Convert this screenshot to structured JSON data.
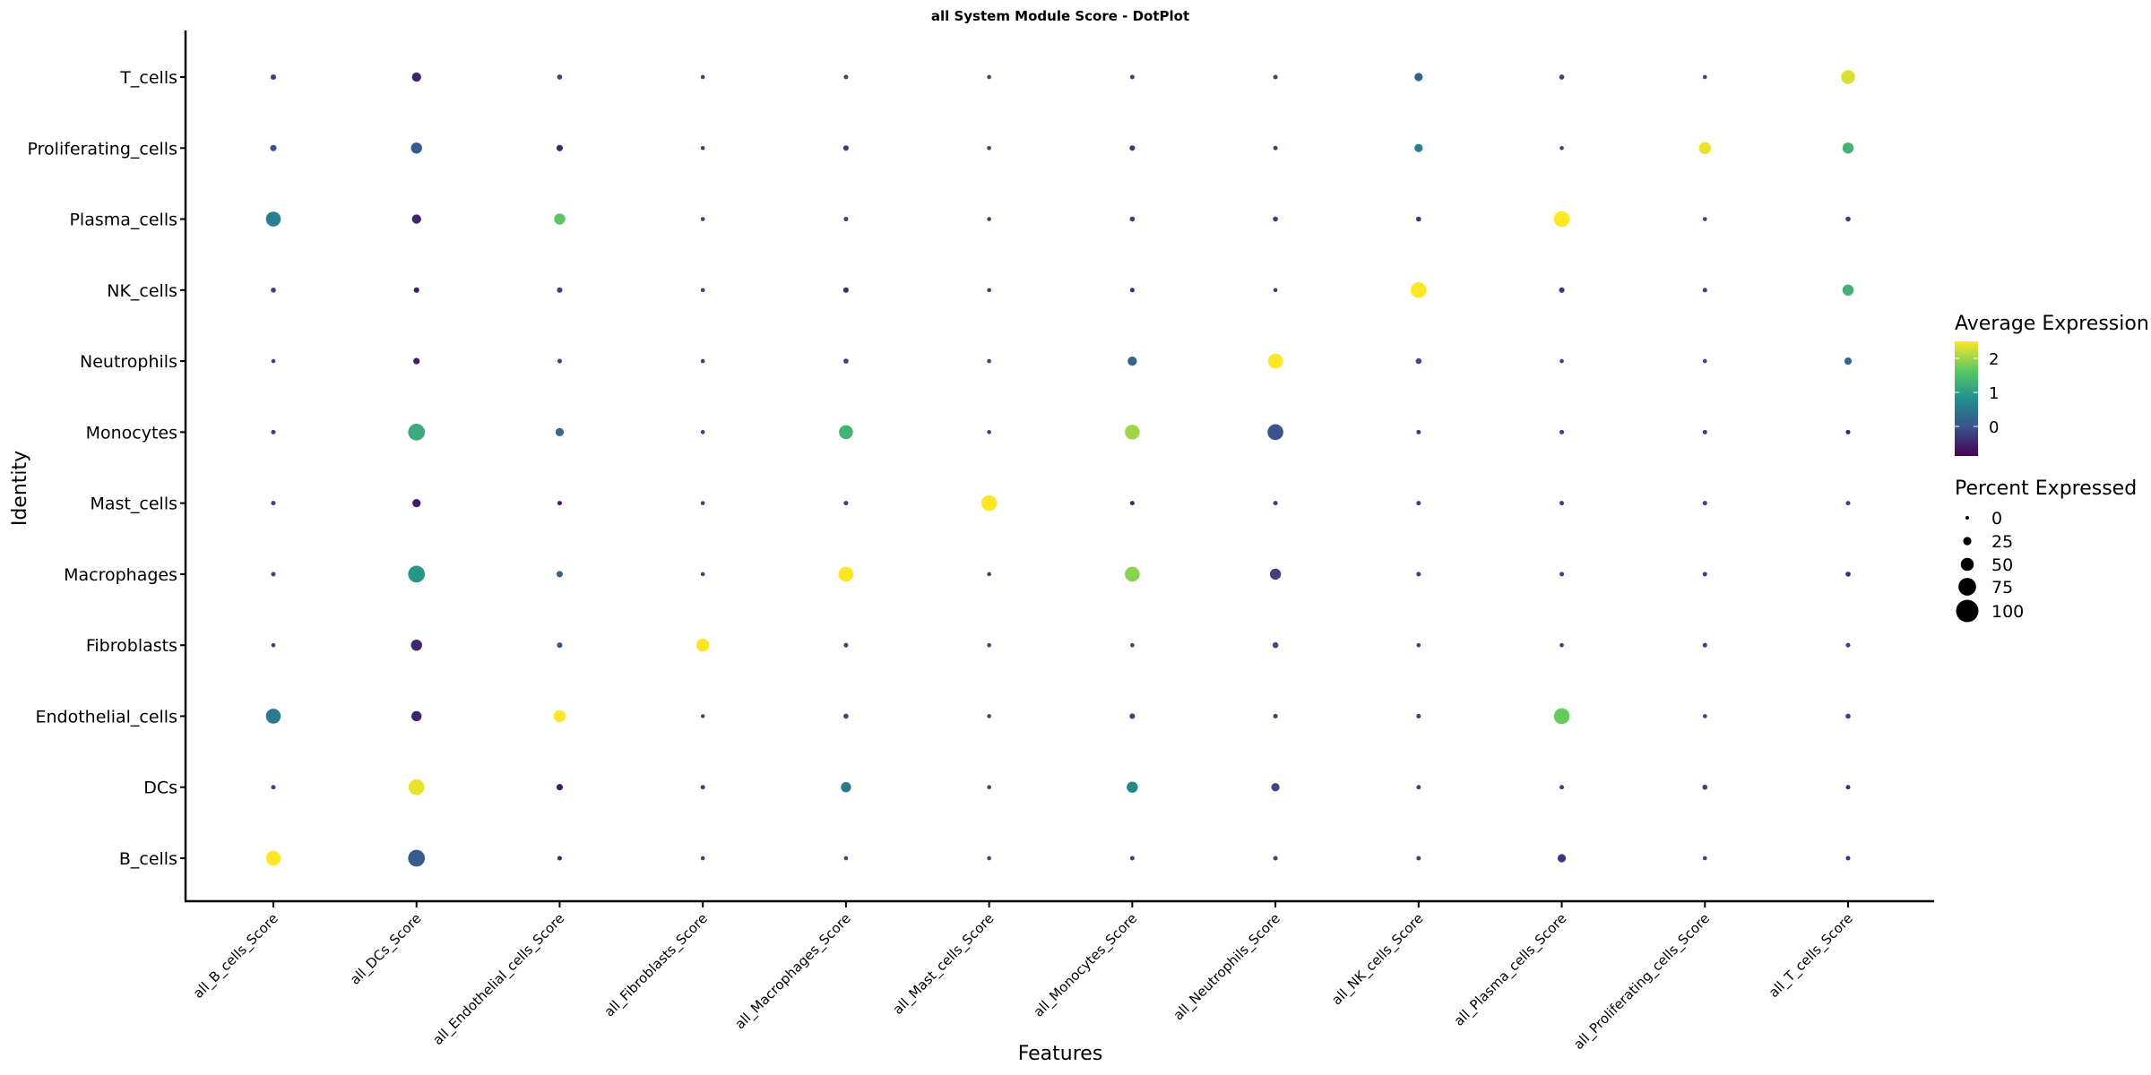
{
  "chart_data": {
    "type": "dotplot",
    "title": "all System Module Score - DotPlot",
    "xlabel": "Features",
    "ylabel": "Identity",
    "features": [
      "all_B_cells_Score",
      "all_DCs_Score",
      "all_Endothelial_cells_Score",
      "all_Fibroblasts_Score",
      "all_Macrophages_Score",
      "all_Mast_cells_Score",
      "all_Monocytes_Score",
      "all_Neutrophils_Score",
      "all_NK_cells_Score",
      "all_Plasma_cells_Score",
      "all_Proliferating_cells_Score",
      "all_T_cells_Score"
    ],
    "identities_top_to_bottom": [
      "T_cells",
      "Proliferating_cells",
      "Plasma_cells",
      "NK_cells",
      "Neutrophils",
      "Monocytes",
      "Mast_cells",
      "Macrophages",
      "Fibroblasts",
      "Endothelial_cells",
      "DCs",
      "B_cells"
    ],
    "avg_expression": [
      [
        -0.2,
        -0.5,
        -0.2,
        -0.2,
        -0.2,
        -0.2,
        -0.2,
        -0.2,
        0.2,
        -0.2,
        -0.2,
        2.3
      ],
      [
        0.0,
        0.1,
        -0.5,
        -0.2,
        -0.3,
        -0.2,
        -0.3,
        -0.2,
        0.6,
        -0.2,
        2.4,
        1.3
      ],
      [
        0.6,
        -0.5,
        1.6,
        -0.2,
        -0.2,
        -0.2,
        -0.2,
        -0.2,
        -0.3,
        2.5,
        -0.2,
        -0.2
      ],
      [
        -0.2,
        -0.6,
        -0.2,
        -0.2,
        -0.4,
        -0.2,
        -0.4,
        -0.2,
        2.5,
        -0.3,
        -0.2,
        1.3
      ],
      [
        -0.2,
        -0.6,
        -0.2,
        -0.2,
        -0.2,
        -0.2,
        0.2,
        2.5,
        -0.1,
        -0.2,
        -0.2,
        0.3
      ],
      [
        -0.2,
        1.2,
        0.3,
        -0.2,
        1.3,
        -0.2,
        2.0,
        0.0,
        -0.2,
        -0.2,
        -0.2,
        -0.5
      ],
      [
        -0.2,
        -0.6,
        -0.6,
        -0.2,
        -0.2,
        2.5,
        -0.4,
        -0.2,
        -0.2,
        -0.2,
        -0.2,
        -0.2
      ],
      [
        -0.2,
        0.9,
        0.2,
        -0.2,
        2.5,
        -0.2,
        1.9,
        -0.2,
        -0.2,
        -0.2,
        -0.2,
        -0.4
      ],
      [
        -0.2,
        -0.5,
        0.0,
        2.5,
        -0.2,
        -0.2,
        -0.2,
        -0.1,
        -0.2,
        -0.2,
        -0.2,
        -0.2
      ],
      [
        0.5,
        -0.5,
        2.5,
        -0.2,
        -0.2,
        -0.2,
        -0.2,
        -0.2,
        -0.2,
        1.7,
        -0.2,
        -0.2
      ],
      [
        -0.2,
        2.4,
        -0.6,
        -0.2,
        0.5,
        -0.2,
        0.7,
        -0.1,
        -0.2,
        -0.2,
        -0.2,
        -0.4
      ],
      [
        2.5,
        0.1,
        -0.5,
        -0.2,
        -0.2,
        -0.2,
        -0.2,
        -0.2,
        -0.2,
        -0.3,
        -0.2,
        -0.4
      ]
    ],
    "pct_expressed": [
      [
        10,
        30,
        8,
        3,
        5,
        3,
        5,
        5,
        25,
        8,
        3,
        55
      ],
      [
        15,
        40,
        15,
        3,
        10,
        3,
        10,
        5,
        25,
        3,
        45,
        40
      ],
      [
        60,
        30,
        40,
        3,
        5,
        3,
        8,
        8,
        8,
        65,
        3,
        8
      ],
      [
        8,
        10,
        10,
        3,
        10,
        3,
        5,
        3,
        65,
        10,
        5,
        40
      ],
      [
        3,
        15,
        5,
        3,
        8,
        3,
        30,
        60,
        12,
        3,
        3,
        20
      ],
      [
        5,
        70,
        25,
        3,
        55,
        3,
        60,
        65,
        5,
        5,
        5,
        5
      ],
      [
        5,
        25,
        5,
        3,
        5,
        65,
        5,
        5,
        5,
        5,
        5,
        5
      ],
      [
        5,
        70,
        15,
        3,
        60,
        3,
        60,
        40,
        5,
        5,
        5,
        8
      ],
      [
        3,
        40,
        10,
        50,
        5,
        3,
        3,
        12,
        3,
        3,
        5,
        5
      ],
      [
        60,
        35,
        45,
        2,
        8,
        3,
        10,
        5,
        5,
        65,
        3,
        8
      ],
      [
        5,
        65,
        15,
        5,
        35,
        3,
        40,
        25,
        5,
        5,
        8,
        5
      ],
      [
        60,
        70,
        5,
        3,
        3,
        3,
        5,
        5,
        5,
        25,
        3,
        5
      ]
    ],
    "color_legend": {
      "title": "Average Expression",
      "ticks": [
        "2",
        "1",
        "0"
      ],
      "range": [
        -0.87,
        2.5
      ],
      "palette": "viridis"
    },
    "size_legend": {
      "title": "Percent Expressed",
      "ticks": [
        "0",
        "25",
        "50",
        "75",
        "100"
      ]
    },
    "grid": false,
    "legend_placement": "right"
  }
}
